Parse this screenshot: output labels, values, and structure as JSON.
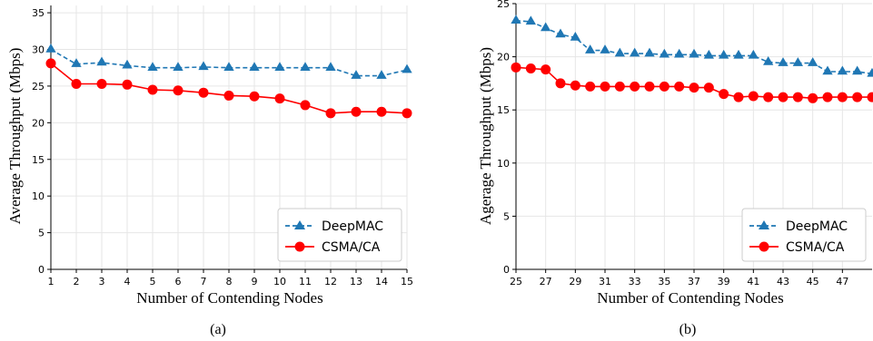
{
  "captions": [
    "(a)",
    "(b)"
  ],
  "chart_data": [
    {
      "type": "line",
      "xlabel": "Number of Contending Nodes",
      "ylabel": "Average Throughput (Mbps)",
      "xlim": [
        1,
        15
      ],
      "ylim": [
        0,
        36
      ],
      "xticks": [
        1,
        2,
        3,
        4,
        5,
        6,
        7,
        8,
        9,
        10,
        11,
        12,
        13,
        14,
        15
      ],
      "yticks": [
        0,
        5,
        10,
        15,
        20,
        25,
        30,
        35
      ],
      "grid": true,
      "legend_position": "bottom-right",
      "series": [
        {
          "name": "DeepMAC",
          "color": "#1f77b4",
          "marker": "triangle",
          "linestyle": "dashed",
          "x": [
            1,
            2,
            3,
            4,
            5,
            6,
            7,
            8,
            9,
            10,
            11,
            12,
            13,
            14,
            15
          ],
          "y": [
            30.0,
            28.0,
            28.2,
            27.8,
            27.5,
            27.5,
            27.6,
            27.5,
            27.5,
            27.5,
            27.5,
            27.5,
            26.4,
            26.4,
            27.2
          ]
        },
        {
          "name": "CSMA/CA",
          "color": "#ff0000",
          "marker": "circle",
          "linestyle": "solid",
          "x": [
            1,
            2,
            3,
            4,
            5,
            6,
            7,
            8,
            9,
            10,
            11,
            12,
            13,
            14,
            15
          ],
          "y": [
            28.1,
            25.3,
            25.3,
            25.2,
            24.5,
            24.4,
            24.1,
            23.7,
            23.6,
            23.3,
            22.4,
            21.3,
            21.5,
            21.5,
            21.3
          ]
        }
      ]
    },
    {
      "type": "line",
      "xlabel": "Number of Contending Nodes",
      "ylabel": "Agerage Throughput (Mbps)",
      "xlim": [
        25,
        49
      ],
      "ylim": [
        0,
        25
      ],
      "xticks": [
        25,
        27,
        29,
        31,
        33,
        35,
        37,
        39,
        41,
        43,
        45,
        47
      ],
      "yticks": [
        0,
        5,
        10,
        15,
        20,
        25
      ],
      "grid": true,
      "legend_position": "bottom-right",
      "series": [
        {
          "name": "DeepMAC",
          "color": "#1f77b4",
          "marker": "triangle",
          "linestyle": "dashed",
          "x": [
            25,
            26,
            27,
            28,
            29,
            30,
            31,
            32,
            33,
            34,
            35,
            36,
            37,
            38,
            39,
            40,
            41,
            42,
            43,
            44,
            45,
            46,
            47,
            48,
            49
          ],
          "y": [
            23.4,
            23.3,
            22.7,
            22.1,
            21.8,
            20.6,
            20.6,
            20.3,
            20.3,
            20.3,
            20.2,
            20.2,
            20.2,
            20.1,
            20.1,
            20.1,
            20.1,
            19.5,
            19.4,
            19.4,
            19.4,
            18.6,
            18.6,
            18.6,
            18.4
          ]
        },
        {
          "name": "CSMA/CA",
          "color": "#ff0000",
          "marker": "circle",
          "linestyle": "solid",
          "x": [
            25,
            26,
            27,
            28,
            29,
            30,
            31,
            32,
            33,
            34,
            35,
            36,
            37,
            38,
            39,
            40,
            41,
            42,
            43,
            44,
            45,
            46,
            47,
            48,
            49
          ],
          "y": [
            19.0,
            18.9,
            18.8,
            17.5,
            17.3,
            17.2,
            17.2,
            17.2,
            17.2,
            17.2,
            17.2,
            17.2,
            17.1,
            17.1,
            16.5,
            16.2,
            16.3,
            16.2,
            16.2,
            16.2,
            16.1,
            16.2,
            16.2,
            16.2,
            16.2
          ]
        }
      ]
    }
  ]
}
